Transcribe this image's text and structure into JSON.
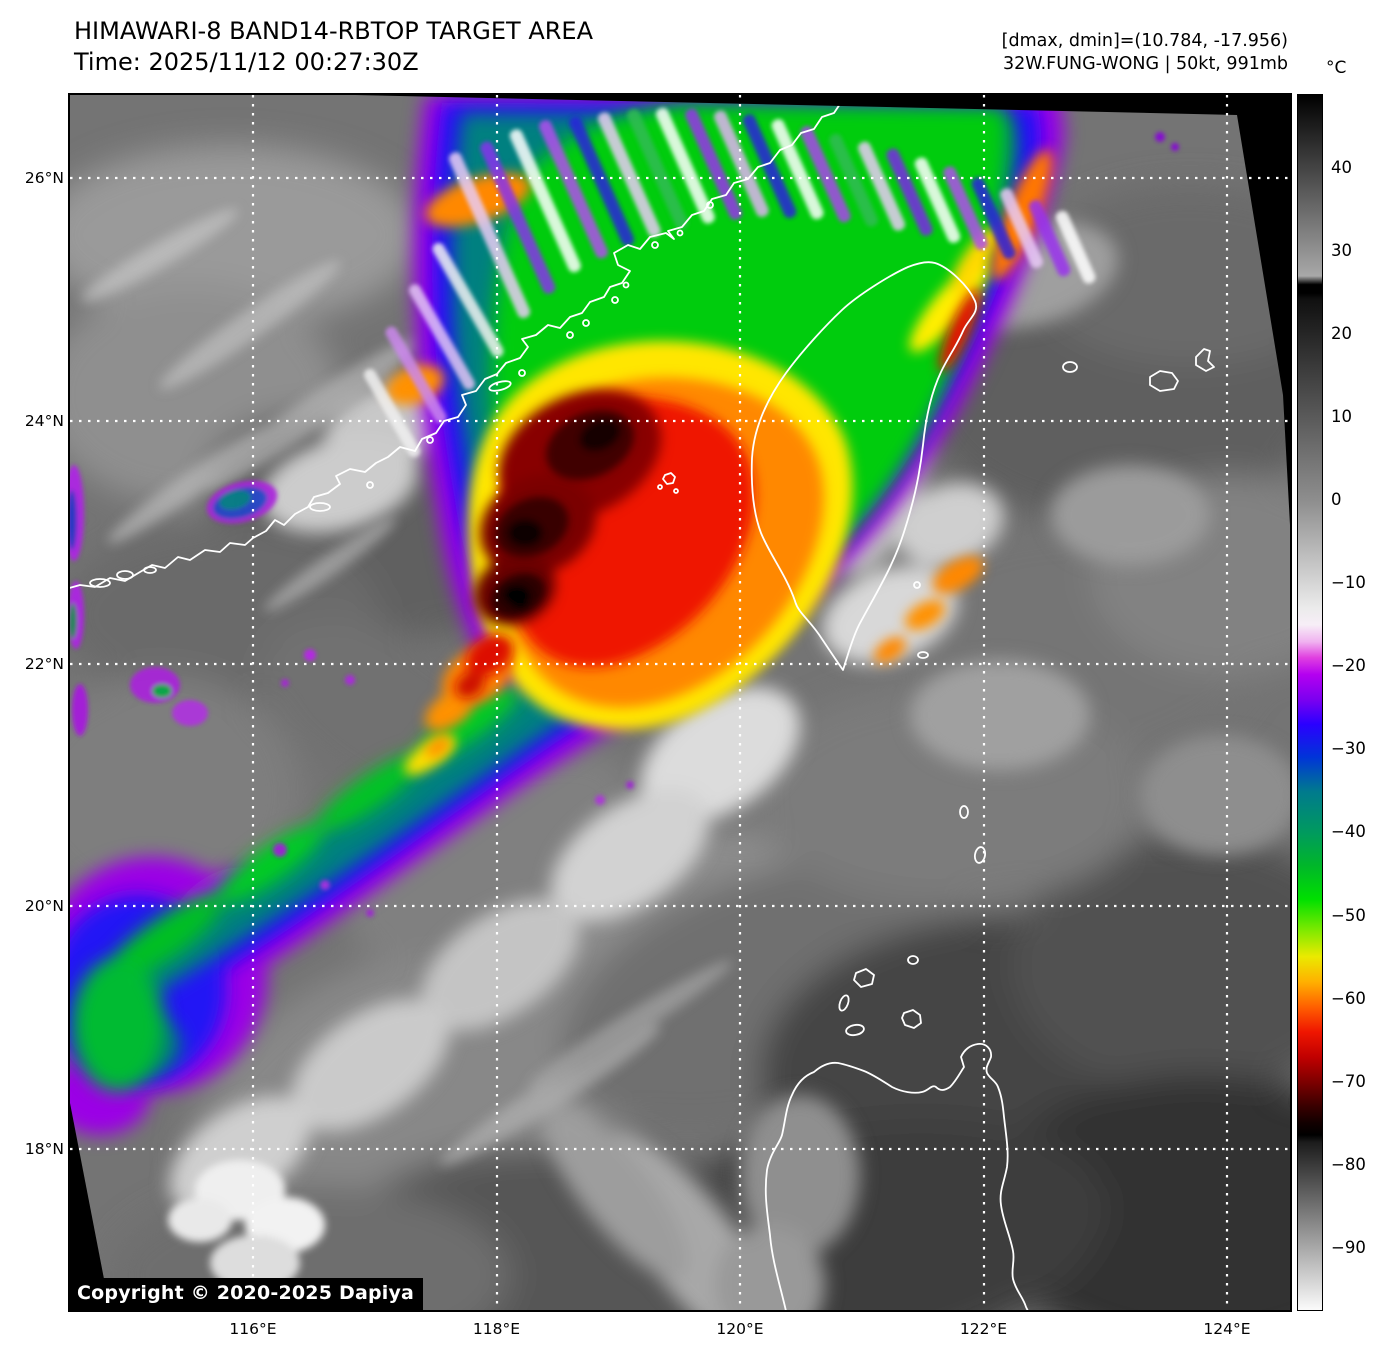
{
  "header": {
    "title": "HIMAWARI-8 BAND14-RBTOP TARGET AREA",
    "time_line": "Time: 2025/11/12 00:27:30Z",
    "dmax_dmin_line": "[dmax, dmin]=(10.784, -17.956)",
    "storm_line": "32W.FUNG-WONG | 50kt, 991mb"
  },
  "map": {
    "copyright": "Copyright © 2020-2025 Dapiya"
  },
  "axes": {
    "lat_ticks": [
      {
        "value": 26,
        "label": "26°N"
      },
      {
        "value": 24,
        "label": "24°N"
      },
      {
        "value": 22,
        "label": "22°N"
      },
      {
        "value": 20,
        "label": "20°N"
      },
      {
        "value": 18,
        "label": "18°N"
      }
    ],
    "lon_ticks": [
      {
        "value": 116,
        "label": "116°E"
      },
      {
        "value": 118,
        "label": "118°E"
      },
      {
        "value": 120,
        "label": "120°E"
      },
      {
        "value": 122,
        "label": "122°E"
      },
      {
        "value": 124,
        "label": "124°E"
      }
    ]
  },
  "colorbar": {
    "unit": "°C",
    "ticks": [
      {
        "value": 40,
        "label": "40"
      },
      {
        "value": 30,
        "label": "30"
      },
      {
        "value": 20,
        "label": "20"
      },
      {
        "value": 10,
        "label": "10"
      },
      {
        "value": 0,
        "label": "0"
      },
      {
        "value": -10,
        "label": "−10"
      },
      {
        "value": -20,
        "label": "−20"
      },
      {
        "value": -30,
        "label": "−30"
      },
      {
        "value": -40,
        "label": "−40"
      },
      {
        "value": -50,
        "label": "−50"
      },
      {
        "value": -60,
        "label": "−60"
      },
      {
        "value": -70,
        "label": "−70"
      },
      {
        "value": -80,
        "label": "−80"
      },
      {
        "value": -90,
        "label": "−90"
      }
    ],
    "gradient_stops": [
      [
        0,
        "#000000"
      ],
      [
        14.9,
        "#a8a8a8"
      ],
      [
        15.6,
        "#000000"
      ],
      [
        16.3,
        "#000000"
      ],
      [
        16.8,
        "#101010"
      ],
      [
        33.4,
        "#8e8e8e"
      ],
      [
        42.2,
        "#ebebeb"
      ],
      [
        43.6,
        "#f7eef7"
      ],
      [
        45.0,
        "#f0b2f0"
      ],
      [
        46.3,
        "#e040e0"
      ],
      [
        47.7,
        "#b400f0"
      ],
      [
        49.8,
        "#7a00f0"
      ],
      [
        51.8,
        "#2a00ff"
      ],
      [
        54.5,
        "#0034d8"
      ],
      [
        57.3,
        "#007a8e"
      ],
      [
        60.7,
        "#009a5e"
      ],
      [
        63.4,
        "#00b62a"
      ],
      [
        66.2,
        "#00e000"
      ],
      [
        68.9,
        "#86ea00"
      ],
      [
        70.9,
        "#eaea00"
      ],
      [
        73.0,
        "#ffb000"
      ],
      [
        75.1,
        "#ff5e00"
      ],
      [
        77.1,
        "#ef1600"
      ],
      [
        79.2,
        "#c00000"
      ],
      [
        81.2,
        "#7e0000"
      ],
      [
        83.2,
        "#3a0000"
      ],
      [
        84.6,
        "#120000"
      ],
      [
        85.6,
        "#000000"
      ],
      [
        86.2,
        "#1c1c1c"
      ],
      [
        100,
        "#fbfbfb"
      ]
    ]
  }
}
